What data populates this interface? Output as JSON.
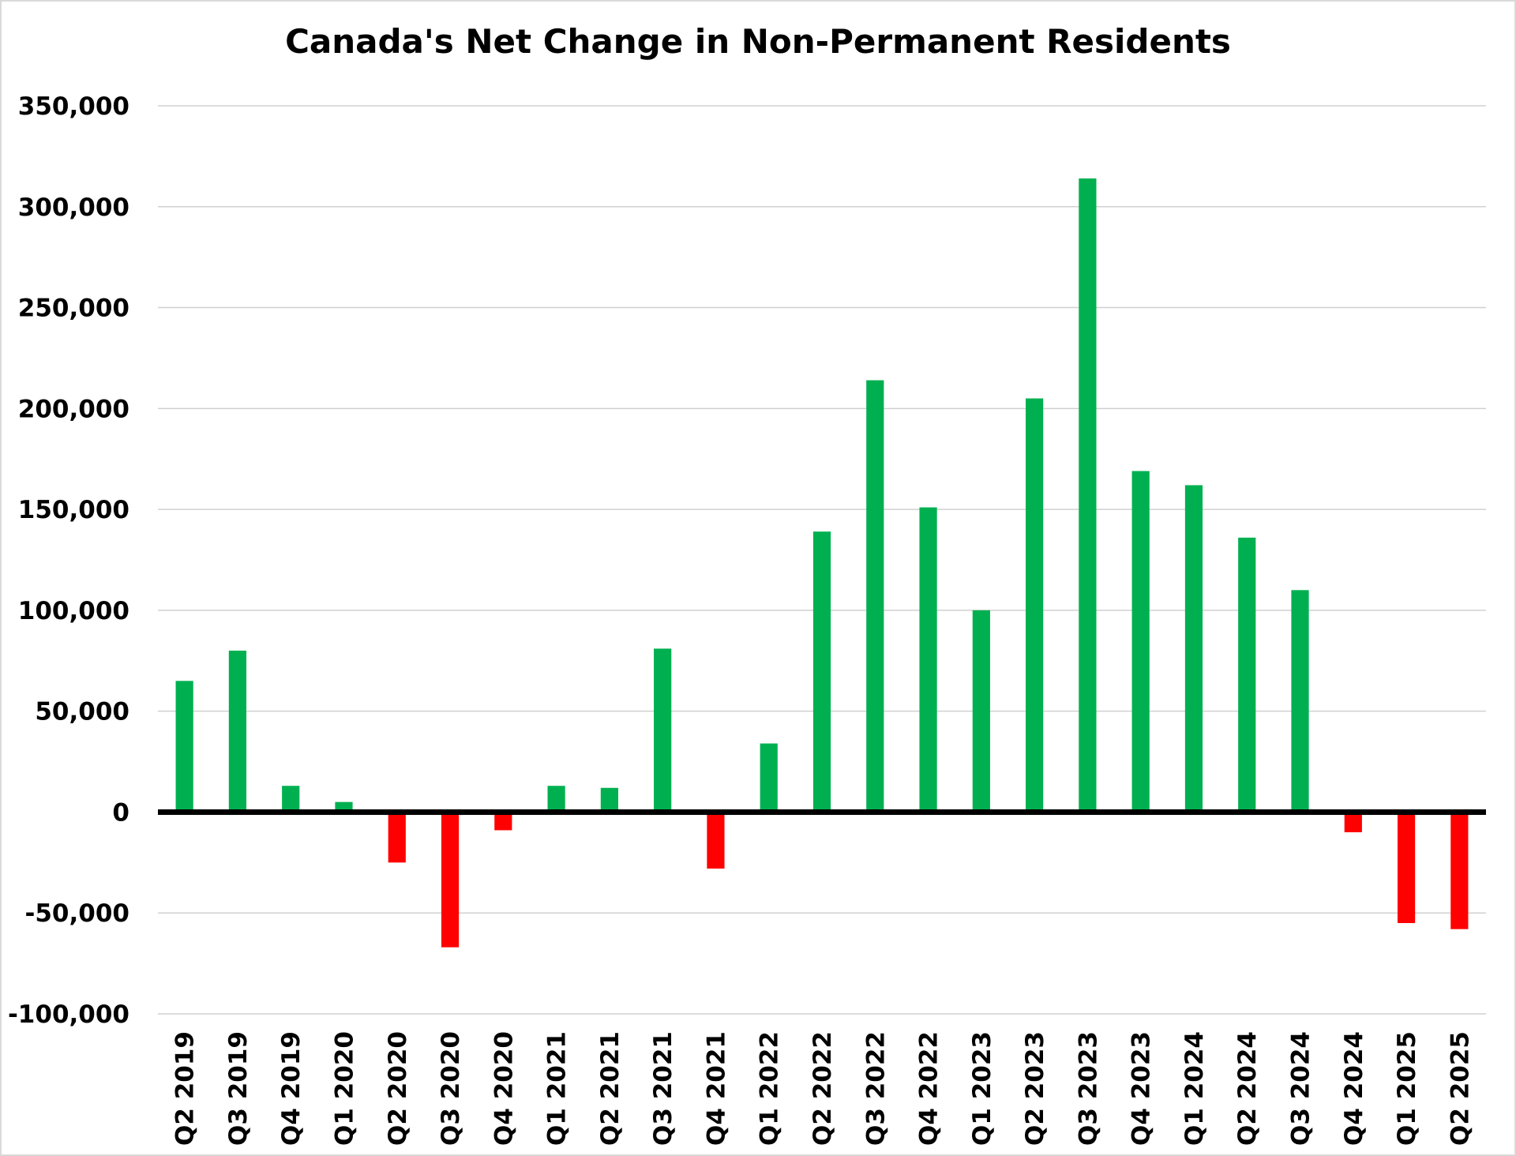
{
  "chart_data": {
    "type": "bar",
    "title": "Canada's Net Change in Non-Permanent Residents",
    "xlabel": "",
    "ylabel": "",
    "ylim": [
      -100000,
      350000
    ],
    "yticks": [
      "350,000",
      "300,000",
      "250,000",
      "200,000",
      "150,000",
      "100,000",
      "50,000",
      "0",
      "-50,000",
      "-100,000"
    ],
    "ytick_values": [
      350000,
      300000,
      250000,
      200000,
      150000,
      100000,
      50000,
      0,
      -50000,
      -100000
    ],
    "grid": true,
    "legend": "none",
    "categories": [
      "Q2 2019",
      "Q3 2019",
      "Q4 2019",
      "Q1 2020",
      "Q2 2020",
      "Q3 2020",
      "Q4 2020",
      "Q1 2021",
      "Q2 2021",
      "Q3 2021",
      "Q4 2021",
      "Q1 2022",
      "Q2 2022",
      "Q3 2022",
      "Q4 2022",
      "Q1 2023",
      "Q2 2023",
      "Q3 2023",
      "Q4 2023",
      "Q1 2024",
      "Q2 2024",
      "Q3 2024",
      "Q4 2024",
      "Q1 2025",
      "Q2 2025"
    ],
    "values": [
      65000,
      80000,
      13000,
      5000,
      -25000,
      -67000,
      -9000,
      13000,
      12000,
      81000,
      -28000,
      34000,
      139000,
      214000,
      151000,
      100000,
      205000,
      314000,
      169000,
      162000,
      136000,
      110000,
      -10000,
      -55000,
      -58000
    ],
    "colors": {
      "positive": "#00b050",
      "negative": "#ff0000",
      "zero_line": "#000000",
      "grid": "#d0d0d0"
    }
  }
}
